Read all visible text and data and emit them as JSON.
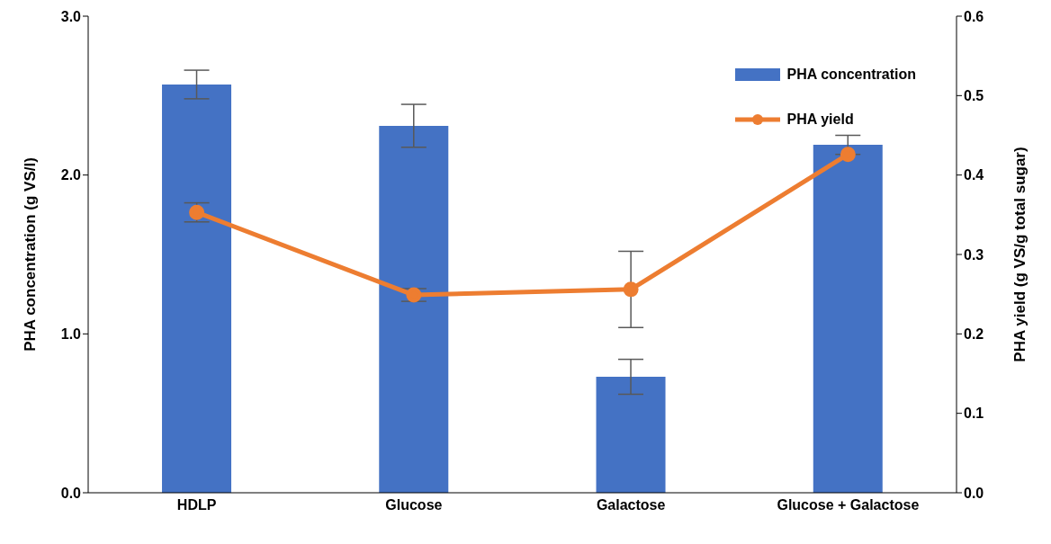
{
  "chart_data": {
    "type": "bar",
    "xlabel": null,
    "ylabel": "PHA concentration (g VS/l)",
    "y2label": "PHA  yield (g VS/g total sugar)",
    "categories": [
      "HDLP",
      "Glucose",
      "Galactose",
      "Glucose + Galactose"
    ],
    "series": [
      {
        "name": "PHA concentration",
        "color": "#4472c4",
        "values": [
          2.57,
          2.31,
          0.73,
          2.19
        ],
        "errors": [
          0.09,
          0.135,
          0.11,
          0.06
        ]
      },
      {
        "name": "PHA yield",
        "type": "line",
        "axis": "y2",
        "color": "#ed7d31",
        "values": [
          0.353,
          0.249,
          0.256,
          0.426
        ],
        "errors": [
          0.012,
          0.008,
          0.048,
          null
        ]
      }
    ],
    "ylim": [
      0,
      3
    ],
    "yticks": [
      {
        "value": 0,
        "label": "0.0"
      },
      {
        "value": 1,
        "label": "1.0"
      },
      {
        "value": 2,
        "label": "2.0"
      },
      {
        "value": 3,
        "label": "3.0"
      }
    ],
    "y2lim": [
      0,
      0.6
    ],
    "y2ticks": [
      {
        "value": 0,
        "label": "0.0"
      },
      {
        "value": 0.1,
        "label": "0.1"
      },
      {
        "value": 0.2,
        "label": "0.2"
      },
      {
        "value": 0.3,
        "label": "0.3"
      },
      {
        "value": 0.4,
        "label": "0.4"
      },
      {
        "value": 0.5,
        "label": "0.5"
      },
      {
        "value": 0.6,
        "label": "0.6"
      }
    ],
    "legend": "top right",
    "marker": "circle",
    "line_style": "solid"
  }
}
